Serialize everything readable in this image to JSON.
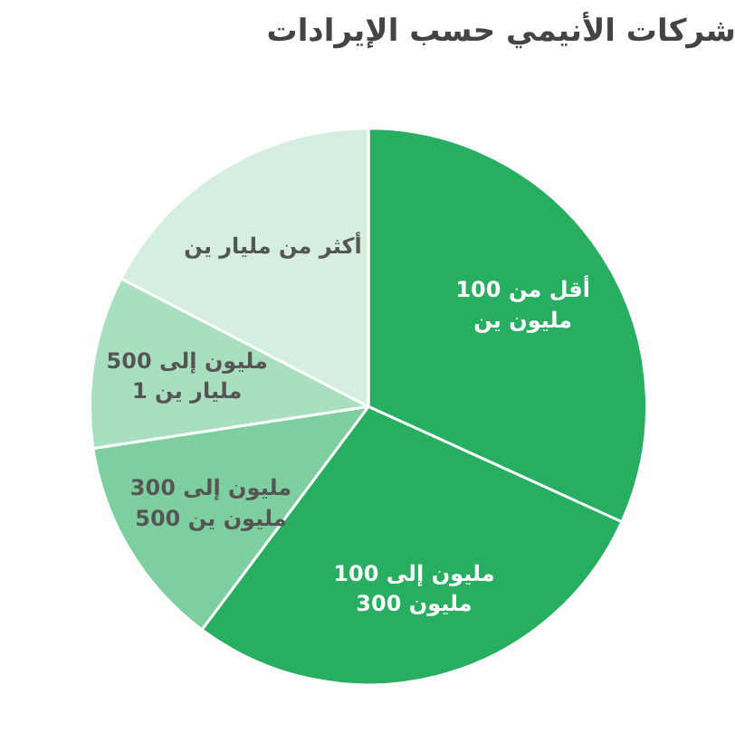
{
  "chart_data": {
    "type": "pie",
    "title": "شركات الأنيمي حسب الإيرادات",
    "categories": [
      "أقل من 100 مليون ين",
      "100 مليون إلى 300 مليون",
      "300 مليون إلى 500 مليون ين",
      "500 مليون إلى 1 مليار ين",
      "أكثر من مليار ين"
    ],
    "values": [
      31.8,
      28.4,
      12.4,
      10.0,
      17.4
    ],
    "colors": [
      "#27ae60",
      "#27ae60",
      "#7dcf9f",
      "#a8dfbf",
      "#d4eedf"
    ]
  }
}
